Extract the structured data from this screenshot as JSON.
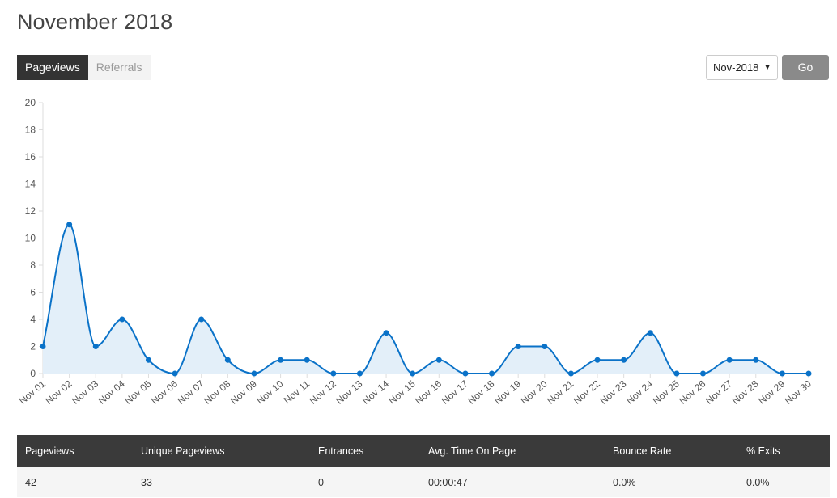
{
  "page_title": "November 2018",
  "tabs": [
    {
      "label": "Pageviews",
      "active": true
    },
    {
      "label": "Referrals",
      "active": false
    }
  ],
  "month_select": {
    "value": "Nov-2018"
  },
  "go_label": "Go",
  "chart_data": {
    "type": "area",
    "categories": [
      "Nov 01",
      "Nov 02",
      "Nov 03",
      "Nov 04",
      "Nov 05",
      "Nov 06",
      "Nov 07",
      "Nov 08",
      "Nov 09",
      "Nov 10",
      "Nov 11",
      "Nov 12",
      "Nov 13",
      "Nov 14",
      "Nov 15",
      "Nov 16",
      "Nov 17",
      "Nov 18",
      "Nov 19",
      "Nov 20",
      "Nov 21",
      "Nov 22",
      "Nov 23",
      "Nov 24",
      "Nov 25",
      "Nov 26",
      "Nov 27",
      "Nov 28",
      "Nov 29",
      "Nov 30"
    ],
    "values": [
      2,
      11,
      2,
      4,
      1,
      0,
      4,
      1,
      0,
      1,
      1,
      0,
      0,
      3,
      0,
      1,
      0,
      0,
      2,
      2,
      0,
      1,
      1,
      3,
      0,
      0,
      1,
      1,
      0,
      0
    ],
    "yticks": [
      0,
      2,
      4,
      6,
      8,
      10,
      12,
      14,
      16,
      18,
      20
    ],
    "ylim": [
      0,
      20
    ],
    "grid": false,
    "line_color": "#0a72c8",
    "fill_color": "#e3eff9"
  },
  "stats": {
    "headers": [
      "Pageviews",
      "Unique Pageviews",
      "Entrances",
      "Avg. Time On Page",
      "Bounce Rate",
      "% Exits"
    ],
    "values": [
      "42",
      "33",
      "0",
      "00:00:47",
      "0.0%",
      "0.0%"
    ]
  }
}
